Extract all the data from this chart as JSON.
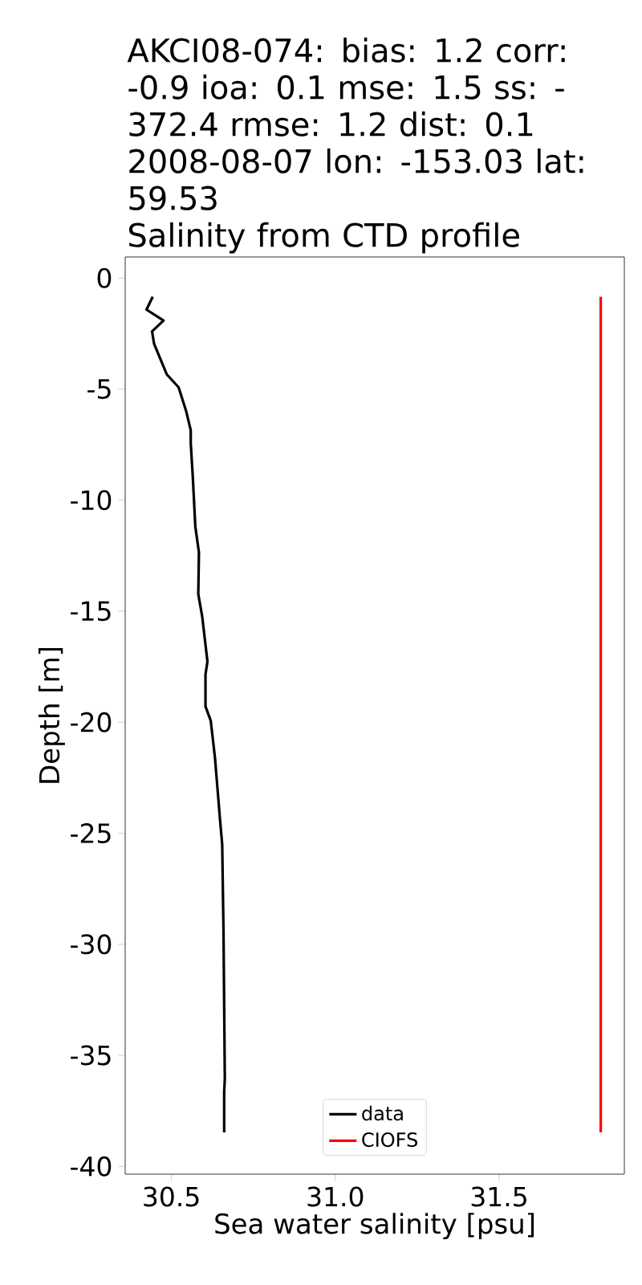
{
  "chart_data": {
    "type": "line",
    "title": "AKCI08-074: bias: 1.2  corr: -0.9  ioa: 0.1  mse: 1.5  ss: -372.4  rmse: 1.2  dist: 0.1 2008-08-07 lon: -153.03 lat: 59.53",
    "subtitle": "Salinity from CTD profile",
    "xlabel": "Sea water salinity [psu]",
    "ylabel": "Depth [m]",
    "series": [
      {
        "name": "data",
        "color": "#000000",
        "x": [
          30.443,
          30.424,
          30.476,
          30.441,
          30.447,
          30.467,
          30.486,
          30.522,
          30.545,
          30.559,
          30.559,
          30.565,
          30.573,
          30.584,
          30.582,
          30.594,
          30.61,
          30.604,
          30.604,
          30.62,
          30.633,
          30.649,
          30.655,
          30.659,
          30.663,
          30.661,
          30.661
        ],
        "values": [
          -0.84,
          -1.42,
          -1.91,
          -2.4,
          -2.95,
          -3.67,
          -4.34,
          -4.92,
          -5.99,
          -6.85,
          -7.43,
          -8.88,
          -11.19,
          -12.35,
          -14.23,
          -15.24,
          -17.27,
          -17.85,
          -19.29,
          -19.93,
          -21.61,
          -24.5,
          -25.51,
          -29.41,
          -36.07,
          -36.65,
          -38.47
        ]
      },
      {
        "name": "CIOFS",
        "color": "#ff0000",
        "x": [
          31.81,
          31.81
        ],
        "values": [
          -0.84,
          -38.47
        ]
      }
    ],
    "xlim": [
      30.359,
      31.882
    ],
    "ylim": [
      -40.35,
      0.95
    ],
    "xticks": [
      30.5,
      {
        "value": 31,
        "label": "31.0"
      },
      31.5
    ],
    "yticks": [
      0,
      -5,
      -10,
      -15,
      -20,
      -25,
      -30,
      -35,
      -40
    ],
    "legend": "bottom",
    "line_style": "solid",
    "marker": "none",
    "grid": false
  }
}
